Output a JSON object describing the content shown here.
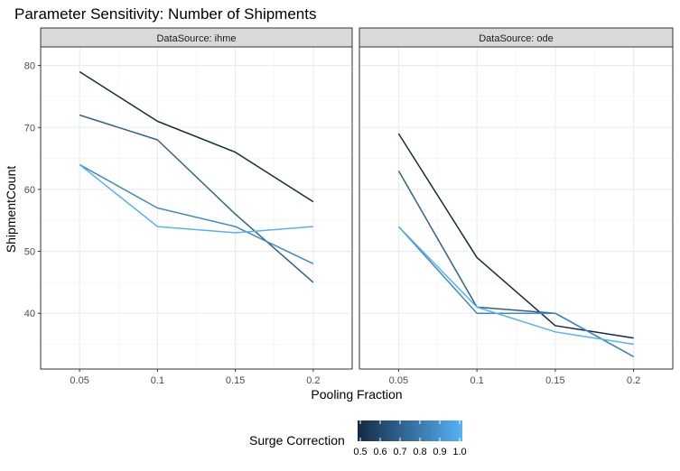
{
  "chart_data": {
    "type": "line",
    "title": "Parameter Sensitivity: Number of Shipments",
    "xlabel": "Pooling Fraction",
    "ylabel": "ShipmentCount",
    "x": [
      0.05,
      0.1,
      0.15,
      0.2
    ],
    "x_tick_labels": [
      "0.05",
      "0.1",
      "0.15",
      "0.2"
    ],
    "y_ticks": [
      40,
      50,
      60,
      70,
      80
    ],
    "ylim": [
      31,
      83
    ],
    "grid": true,
    "facet_strip_labels": [
      "DataSource: ihme",
      "DataSource: ode"
    ],
    "panels": [
      {
        "strip_label": "DataSource: ihme",
        "series": [
          {
            "surge_correction": 0.5,
            "values": [
              79,
              71,
              66,
              58
            ]
          },
          {
            "surge_correction": 0.7,
            "values": [
              72,
              68,
              56,
              45
            ]
          },
          {
            "surge_correction": 0.85,
            "values": [
              64,
              57,
              54,
              48
            ]
          },
          {
            "surge_correction": 1.0,
            "values": [
              64,
              54,
              53,
              54
            ]
          }
        ]
      },
      {
        "strip_label": "DataSource: ode",
        "series": [
          {
            "surge_correction": 0.5,
            "values": [
              69,
              49,
              38,
              36
            ]
          },
          {
            "surge_correction": 0.7,
            "values": [
              63,
              41,
              40,
              33
            ]
          },
          {
            "surge_correction": 0.85,
            "values": [
              54,
              40,
              40,
              33
            ]
          },
          {
            "surge_correction": 1.0,
            "values": [
              54,
              41,
              37,
              35
            ]
          }
        ]
      }
    ],
    "legend": {
      "title": "Surge Correction",
      "position": "bottom",
      "type": "colorbar",
      "range": [
        0.5,
        1.0
      ],
      "tick_labels": [
        "0.5",
        "0.6",
        "0.7",
        "0.8",
        "0.9",
        "1.0"
      ],
      "color_low": "#132B43",
      "color_high": "#56B1F7"
    }
  }
}
